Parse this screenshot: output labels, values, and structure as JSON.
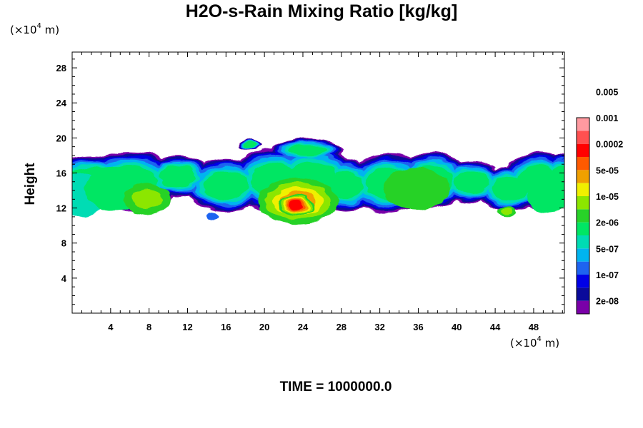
{
  "chart_data": {
    "type": "heatmap",
    "title": "H2O-s-Rain Mixing Ratio [kg/kg]",
    "ylabel": "Height",
    "x_unit": {
      "prefix": "(×10",
      "exp": "4",
      "suffix": " m)"
    },
    "y_unit": {
      "prefix": "(×10",
      "exp": "4",
      "suffix": " m)"
    },
    "xlim": [
      0,
      51.2
    ],
    "ylim": [
      0,
      29.8
    ],
    "x_ticks": [
      4,
      8,
      12,
      16,
      20,
      24,
      28,
      32,
      36,
      40,
      44,
      48
    ],
    "y_ticks": [
      4,
      8,
      12,
      16,
      20,
      24,
      28
    ],
    "time_label": "TIME = 1000000.0",
    "colorbar": {
      "levels": [
        "2e-08",
        "1e-07",
        "5e-07",
        "2e-06",
        "1e-05",
        "5e-05",
        "0.0002",
        "0.001",
        "0.005"
      ],
      "colors": [
        "#7a00a8",
        "#0a0a9a",
        "#0000e6",
        "#1e64f0",
        "#00b4f0",
        "#00dcb4",
        "#00e664",
        "#28d228",
        "#8ce600",
        "#f0f000",
        "#f0a000",
        "#ff5a00",
        "#ff0000",
        "#ff5050",
        "#ff9aa0"
      ]
    },
    "field": {
      "description_none": "",
      "cells": [
        {
          "x": 1,
          "y": 13.5,
          "rx": 2.5,
          "ry": 2.5,
          "level": 5
        },
        {
          "x": 4.5,
          "y": 14.2,
          "rx": 3.2,
          "ry": 2.6,
          "level": 6
        },
        {
          "x": 7.8,
          "y": 13.0,
          "rx": 2.4,
          "ry": 1.8,
          "level": 8
        },
        {
          "x": 23.5,
          "y": 12.8,
          "rx": 4.2,
          "ry": 2.6,
          "level": 10
        },
        {
          "x": 23.3,
          "y": 12.3,
          "rx": 1.8,
          "ry": 1.2,
          "level": 12
        },
        {
          "x": 35.8,
          "y": 14.2,
          "rx": 3.5,
          "ry": 2.4,
          "level": 7
        },
        {
          "x": 49.5,
          "y": 13.5,
          "rx": 2.2,
          "ry": 2.0,
          "level": 6
        },
        {
          "x": 14.5,
          "y": 11.0,
          "rx": 0.6,
          "ry": 0.5,
          "level": 3
        },
        {
          "x": 45.2,
          "y": 11.6,
          "rx": 0.9,
          "ry": 0.6,
          "level": 8
        }
      ]
    }
  }
}
